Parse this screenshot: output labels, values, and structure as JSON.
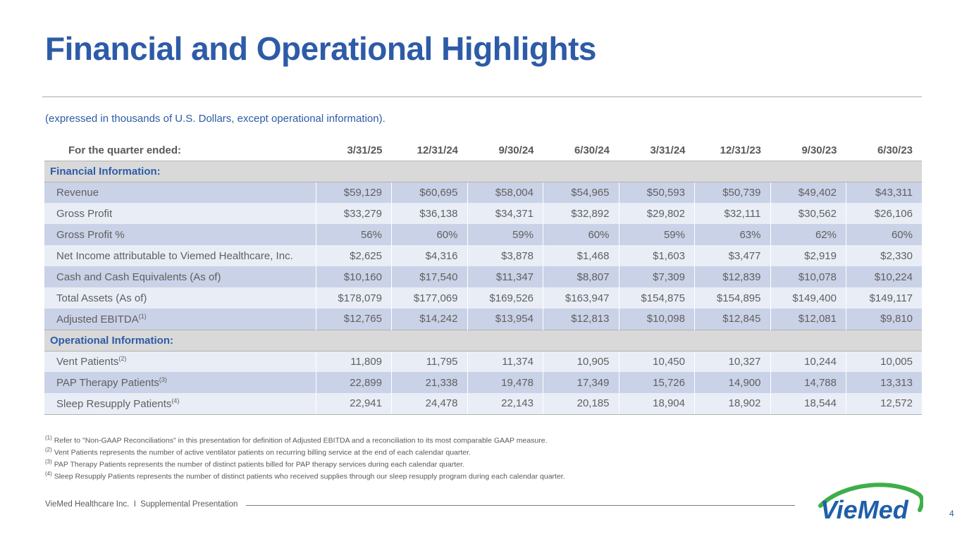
{
  "slide": {
    "title": "Financial and Operational Highlights",
    "subtitle": "(expressed in thousands of U.S. Dollars, except operational information).",
    "page_number": "4"
  },
  "table": {
    "header_label": "For the quarter ended:",
    "columns": [
      "3/31/25",
      "12/31/24",
      "9/30/24",
      "6/30/24",
      "3/31/24",
      "12/31/23",
      "9/30/23",
      "6/30/23"
    ],
    "sections": [
      {
        "label": "Financial Information:",
        "rows": [
          {
            "label": "Revenue",
            "sup": "",
            "values": [
              "$59,129",
              "$60,695",
              "$58,004",
              "$54,965",
              "$50,593",
              "$50,739",
              "$49,402",
              "$43,311"
            ]
          },
          {
            "label": "Gross Profit",
            "sup": "",
            "values": [
              "$33,279",
              "$36,138",
              "$34,371",
              "$32,892",
              "$29,802",
              "$32,111",
              "$30,562",
              "$26,106"
            ]
          },
          {
            "label": "Gross Profit %",
            "sup": "",
            "values": [
              "56%",
              "60%",
              "59%",
              "60%",
              "59%",
              "63%",
              "62%",
              "60%"
            ]
          },
          {
            "label": "Net Income attributable to Viemed Healthcare, Inc.",
            "sup": "",
            "values": [
              "$2,625",
              "$4,316",
              "$3,878",
              "$1,468",
              "$1,603",
              "$3,477",
              "$2,919",
              "$2,330"
            ]
          },
          {
            "label": "Cash and Cash Equivalents (As of)",
            "sup": "",
            "values": [
              "$10,160",
              "$17,540",
              "$11,347",
              "$8,807",
              "$7,309",
              "$12,839",
              "$10,078",
              "$10,224"
            ]
          },
          {
            "label": "Total Assets (As of)",
            "sup": "",
            "values": [
              "$178,079",
              "$177,069",
              "$169,526",
              "$163,947",
              "$154,875",
              "$154,895",
              "$149,400",
              "$149,117"
            ]
          },
          {
            "label": "Adjusted EBITDA",
            "sup": "(1)",
            "values": [
              "$12,765",
              "$14,242",
              "$13,954",
              "$12,813",
              "$10,098",
              "$12,845",
              "$12,081",
              "$9,810"
            ]
          }
        ]
      },
      {
        "label": "Operational Information:",
        "rows": [
          {
            "label": "Vent Patients",
            "sup": "(2)",
            "values": [
              "11,809",
              "11,795",
              "11,374",
              "10,905",
              "10,450",
              "10,327",
              "10,244",
              "10,005"
            ]
          },
          {
            "label": "PAP Therapy Patients",
            "sup": "(3)",
            "values": [
              "22,899",
              "21,338",
              "19,478",
              "17,349",
              "15,726",
              "14,900",
              "14,788",
              "13,313"
            ]
          },
          {
            "label": "Sleep Resupply Patients",
            "sup": "(4)",
            "values": [
              "22,941",
              "24,478",
              "22,143",
              "20,185",
              "18,904",
              "18,902",
              "18,544",
              "12,572"
            ]
          }
        ]
      }
    ]
  },
  "footnotes": [
    {
      "sup": "(1)",
      "text": "Refer to \"Non-GAAP Reconciliations\" in this presentation for definition of Adjusted EBITDA and a reconciliation to its most comparable GAAP measure."
    },
    {
      "sup": "(2)",
      "text": "Vent Patients represents the number of active ventilator patients on recurring billing service at the end of each calendar quarter."
    },
    {
      "sup": "(3)",
      "text": "PAP Therapy Patients represents the number of distinct patients billed for PAP therapy services during each calendar quarter."
    },
    {
      "sup": "(4)",
      "text": "Sleep Resupply Patients represents the number of distinct patients who received supplies through our sleep resupply program during each calendar quarter."
    }
  ],
  "footer": {
    "left": "VieMed Healthcare Inc.  I  Supplemental Presentation",
    "logo_text": "VieMed"
  },
  "colors": {
    "accent_blue": "#2d5ba7",
    "logo_blue": "#1f5fa9",
    "logo_green": "#3fae49",
    "row_dark": "#cad2e7",
    "row_light": "#e9edf6",
    "section_gray": "#d9d9d9",
    "text_gray": "#595959"
  }
}
